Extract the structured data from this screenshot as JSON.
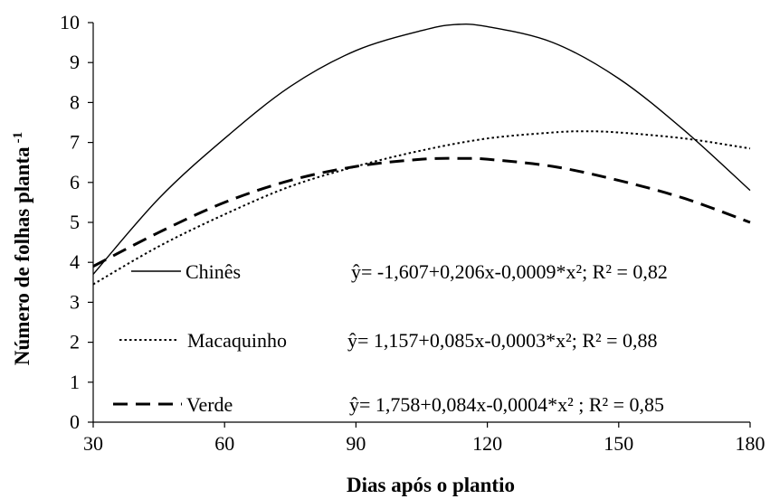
{
  "chart_data": {
    "type": "line",
    "xlabel": "Dias após o plantio",
    "ylabel_main": "Número de folhas planta",
    "ylabel_sup": "-1",
    "xlim": [
      30,
      180
    ],
    "ylim": [
      0,
      10
    ],
    "xticks": [
      "30",
      "60",
      "90",
      "120",
      "150",
      "180"
    ],
    "yticks": [
      "0",
      "1",
      "2",
      "3",
      "4",
      "5",
      "6",
      "7",
      "8",
      "9",
      "10"
    ],
    "grid": false,
    "series": [
      {
        "name": "Chinês",
        "equation": "ŷ= -1,607+0,206x-0,0009*x²; R² = 0,82",
        "style": "solid",
        "color": "#000000",
        "x": [
          30,
          45,
          60,
          75,
          90,
          105,
          112.5,
          120,
          135,
          150,
          165,
          180
        ],
        "y": [
          3.7,
          5.6,
          7.1,
          8.4,
          9.3,
          9.8,
          9.95,
          9.9,
          9.5,
          8.6,
          7.3,
          5.8
        ]
      },
      {
        "name": "Macaquinho",
        "equation": "ŷ= 1,157+0,085x-0,0003*x²; R² = 0,88",
        "style": "dotted",
        "color": "#000000",
        "x": [
          30,
          45,
          60,
          75,
          90,
          105,
          120,
          135,
          142,
          150,
          165,
          180
        ],
        "y": [
          3.45,
          4.4,
          5.2,
          5.9,
          6.4,
          6.8,
          7.1,
          7.25,
          7.28,
          7.25,
          7.1,
          6.85
        ]
      },
      {
        "name": "Verde",
        "equation": "ŷ= 1,758+0,084x-0,0004*x² ; R² = 0,85",
        "style": "dashed",
        "color": "#000000",
        "x": [
          30,
          45,
          60,
          75,
          90,
          105,
          115,
          120,
          135,
          150,
          165,
          180
        ],
        "y": [
          3.9,
          4.75,
          5.5,
          6.05,
          6.4,
          6.58,
          6.6,
          6.58,
          6.4,
          6.05,
          5.6,
          5.0
        ]
      }
    ]
  }
}
